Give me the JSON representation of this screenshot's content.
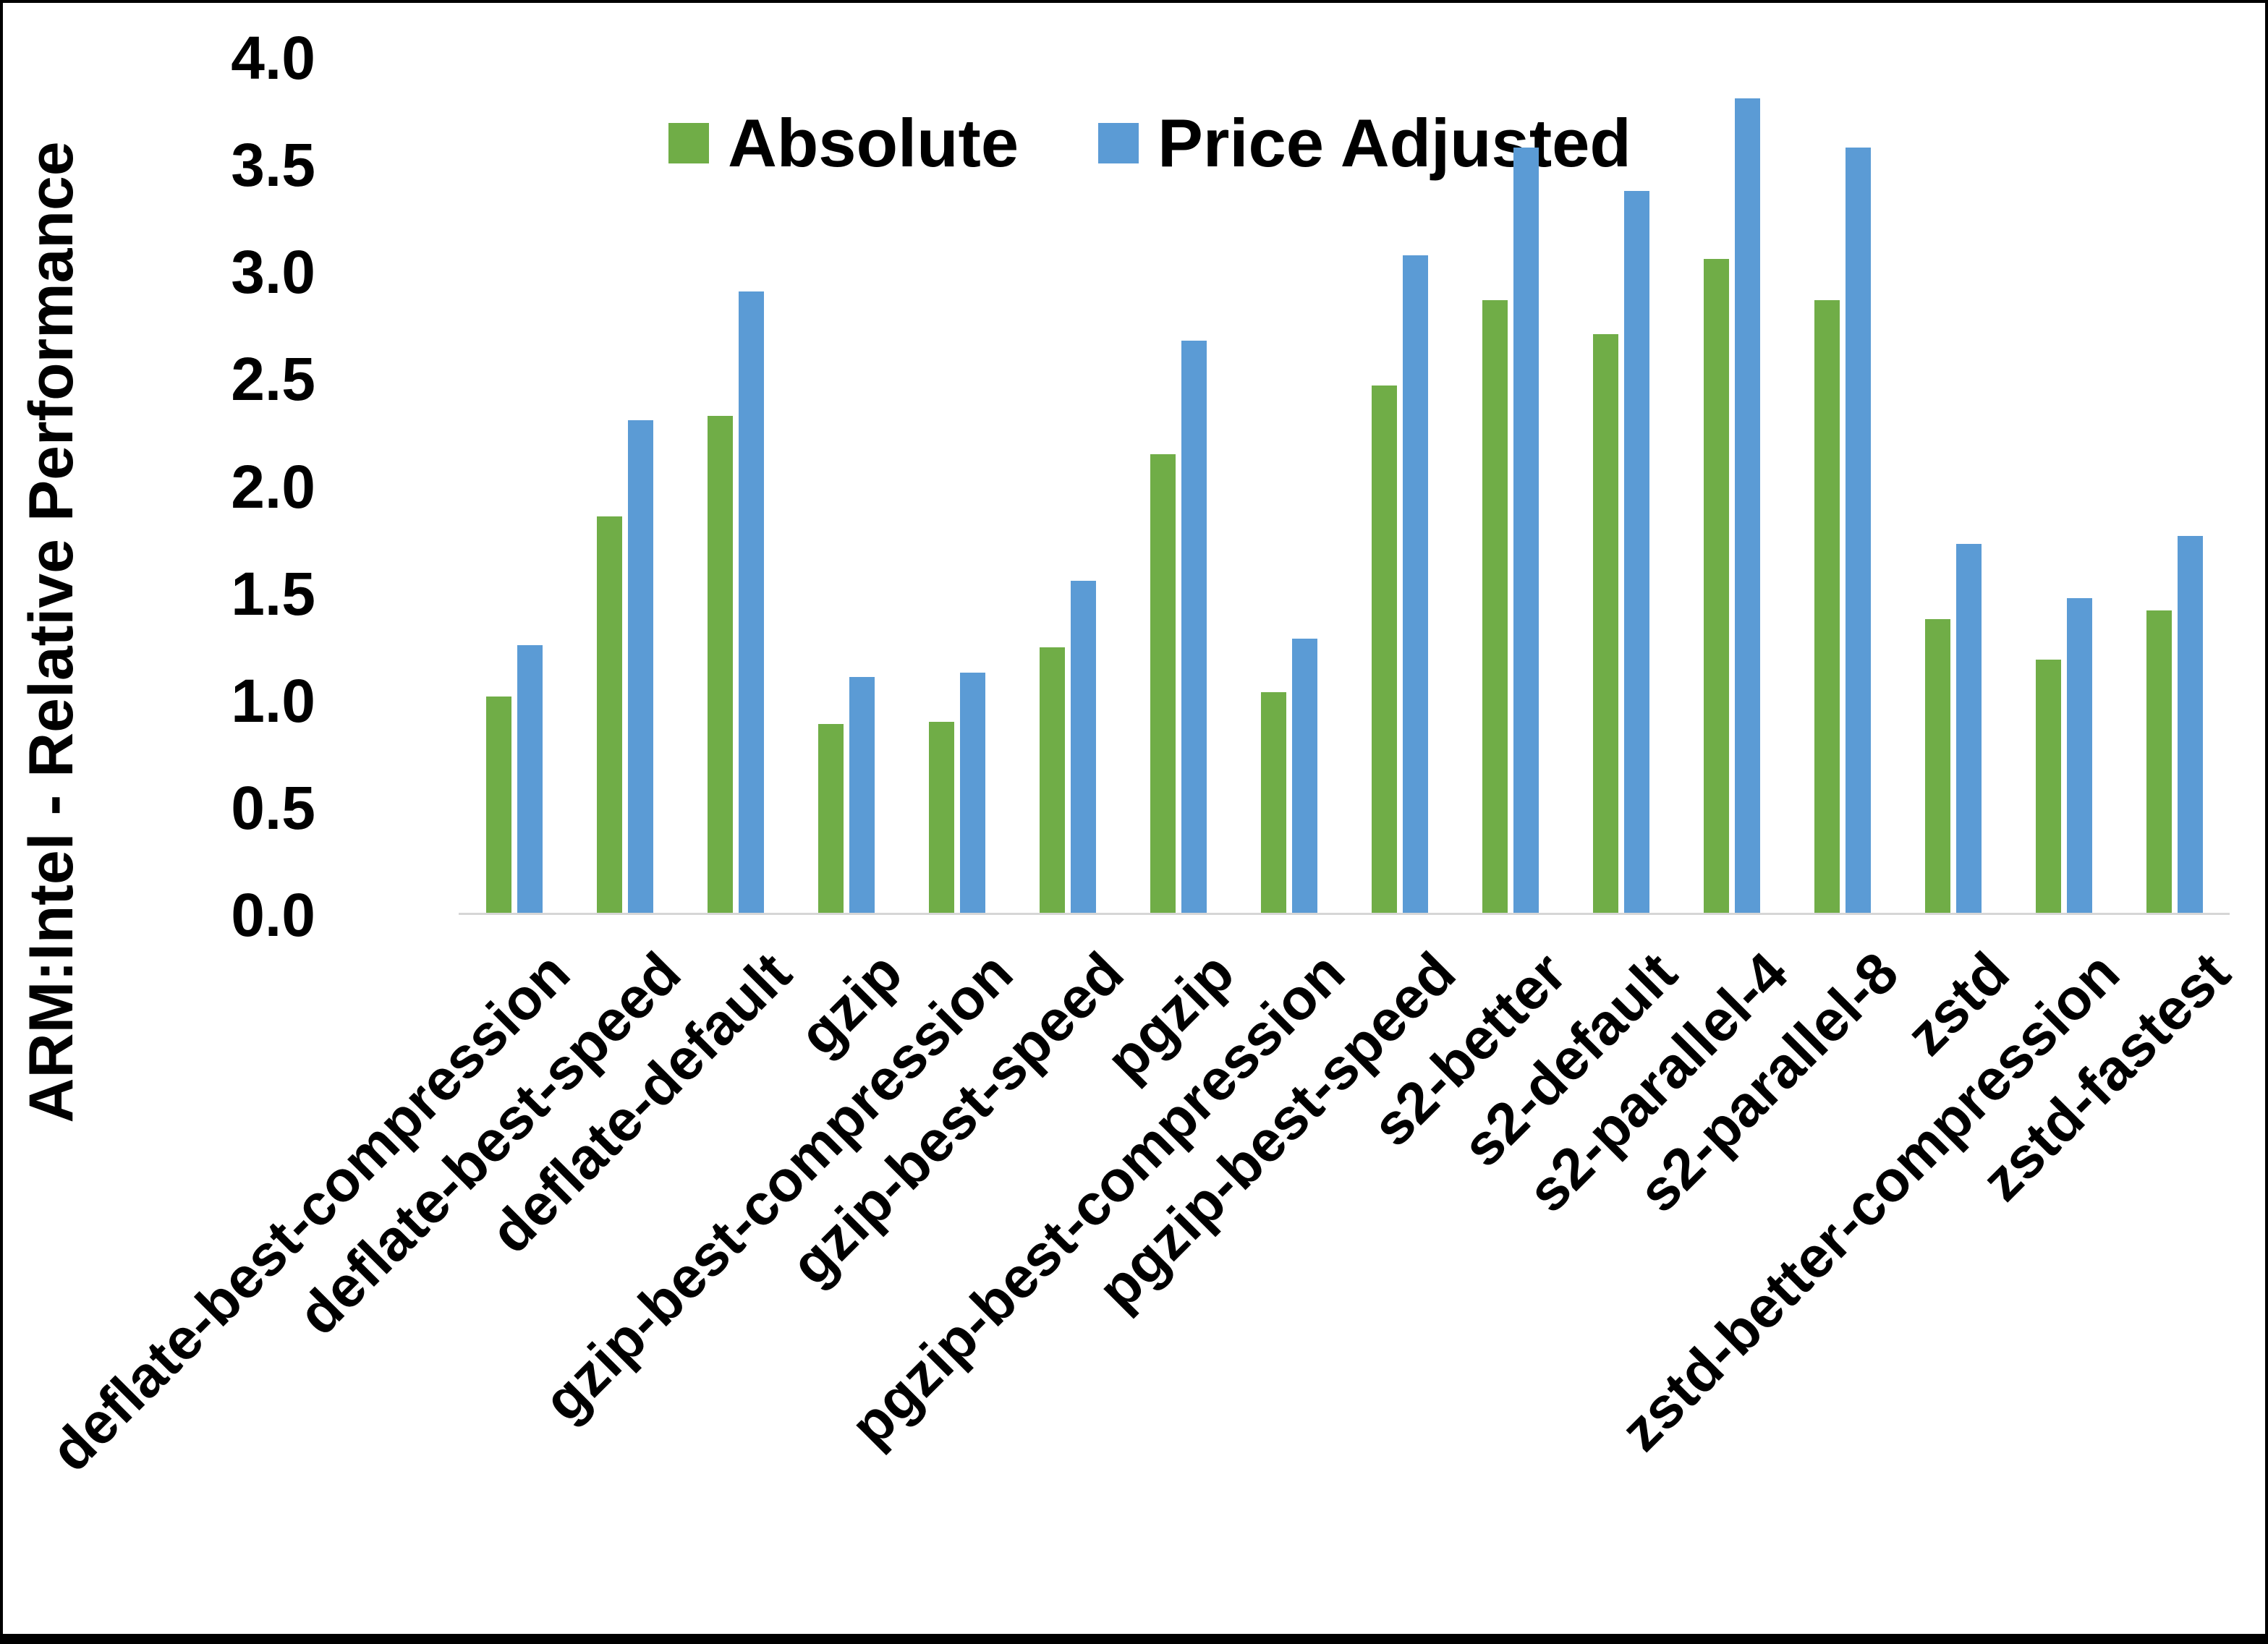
{
  "colors": {
    "absolute": "#70AD47",
    "price_adjusted": "#5B9BD5",
    "axis_line": "#d6d6d6",
    "text": "#000000",
    "frame": "#000000",
    "background": "#ffffff"
  },
  "y_axis": {
    "title": "ARM:Intel - Relative Performance",
    "tick_labels": [
      "0.0",
      "0.5",
      "1.0",
      "1.5",
      "2.0",
      "2.5",
      "3.0",
      "3.5",
      "4.0"
    ],
    "min": 0,
    "max": 4,
    "step": 0.5
  },
  "legend": {
    "items": [
      {
        "label": "Absolute",
        "color": "#70AD47"
      },
      {
        "label": "Price Adjusted",
        "color": "#5B9BD5"
      }
    ],
    "position": "top"
  },
  "chart_data": {
    "type": "bar",
    "title": "",
    "xlabel": "",
    "ylabel": "ARM:Intel - Relative Performance",
    "ylim": [
      0,
      4
    ],
    "grid": false,
    "legend_position": "top-center",
    "categories": [
      "deflate-best-compression",
      "deflate-best-speed",
      "deflate-default",
      "gzip",
      "gzip-best-compression",
      "gzip-best-speed",
      "pgzip",
      "pgzip-best-compression",
      "pgzip-best-speed",
      "s2-better",
      "s2-default",
      "s2-parallel-4",
      "s2-parallel-8",
      "zstd",
      "zstd-better-compression",
      "zstd-fastest"
    ],
    "series": [
      {
        "name": "Absolute",
        "color": "#70AD47",
        "values": [
          1.01,
          1.85,
          2.32,
          0.88,
          0.89,
          1.24,
          2.14,
          1.03,
          2.46,
          2.86,
          2.7,
          3.05,
          2.86,
          1.37,
          1.18,
          1.41
        ]
      },
      {
        "name": "Price Adjusted",
        "color": "#5B9BD5",
        "values": [
          1.25,
          2.3,
          2.9,
          1.1,
          1.12,
          1.55,
          2.67,
          1.28,
          3.07,
          3.57,
          3.37,
          3.8,
          3.57,
          1.72,
          1.47,
          1.76
        ]
      }
    ]
  }
}
